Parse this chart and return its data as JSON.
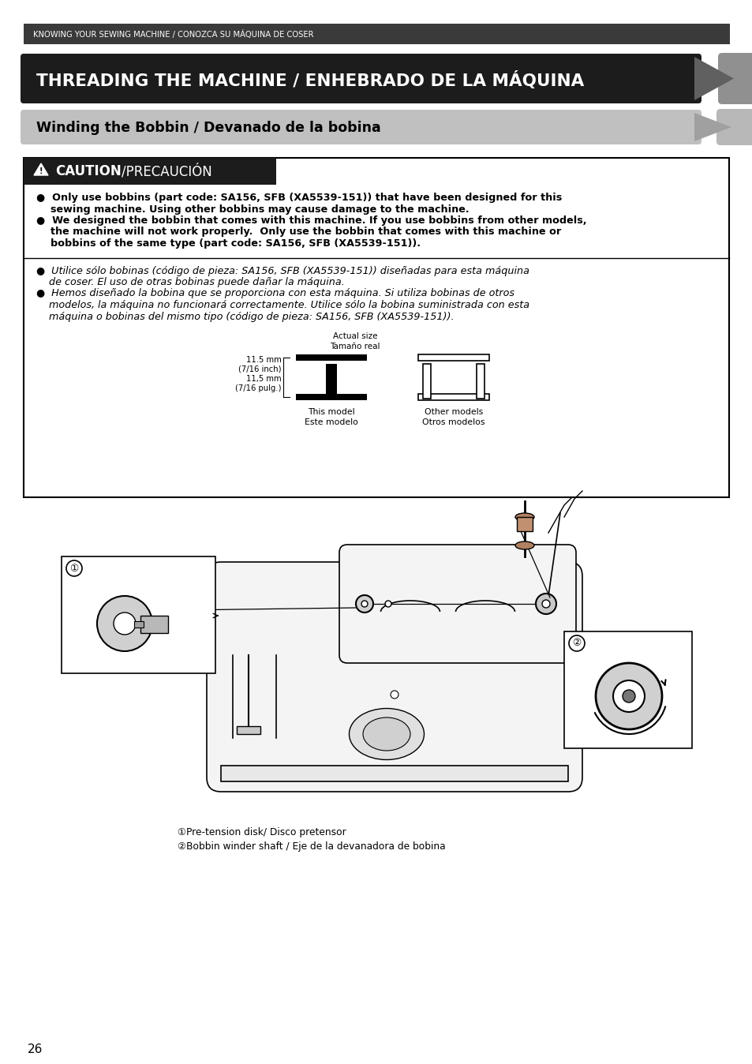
{
  "page_number": "26",
  "header_text": "KNOWING YOUR SEWING MACHINE / CONOZCA SU MÁQUINA DE COSER",
  "main_title": "THREADING THE MACHINE / ENHEBRADO DE LA MÁQUINA",
  "subtitle": "Winding the Bobbin / Devanado de la bobina",
  "caution_label_bold": "CAUTION",
  "caution_label_normal": "/PRECAUCIÓN",
  "en_bullet1_line1": "●  Only use bobbins (part code: SA156, SFB (XA5539-151)) that have been designed for this",
  "en_bullet1_line2": "    sewing machine. Using other bobbins may cause damage to the machine.",
  "en_bullet2_line1": "●  We designed the bobbin that comes with this machine. If you use bobbins from other models,",
  "en_bullet2_line2": "    the machine will not work properly.  Only use the bobbin that comes with this machine or",
  "en_bullet2_line3": "    bobbins of the same type (part code: SA156, SFB (XA5539-151)).",
  "es_bullet1_line1": "●  Utilice sólo bobinas (código de pieza: SA156, SFB (XA5539-151)) diseñadas para esta máquina",
  "es_bullet1_line2": "    de coser. El uso de otras bobinas puede dañar la máquina.",
  "es_bullet2_line1": "●  Hemos diseñado la bobina que se proporciona con esta máquina. Si utiliza bobinas de otros",
  "es_bullet2_line2": "    modelos, la máquina no funcionará correctamente. Utilice sólo la bobina suministrada con esta",
  "es_bullet2_line3": "    máquina o bobinas del mismo tipo (código de pieza: SA156, SFB (XA5539-151)).",
  "actual_size_en": "Actual size",
  "actual_size_es": "Tamaño real",
  "this_model_en": "This model",
  "this_model_es": "Este modelo",
  "other_models_en": "Other models",
  "other_models_es": "Otros modelos",
  "dim_line1": "11.5 mm",
  "dim_line2": "(7/16 inch)",
  "dim_line3": "11,5 mm",
  "dim_line4": "(7/16 pulg.)",
  "caption1": "①Pre-tension disk/ Disco pretensor",
  "caption2": "②Bobbin winder shaft / Eje de la devanadora de bobina",
  "bg_color": "#ffffff",
  "header_bar_color": "#3a3a3a",
  "title_bar_color": "#1c1c1c",
  "subtitle_bar_color": "#c0c0c0",
  "caution_header_color": "#1c1c1c"
}
